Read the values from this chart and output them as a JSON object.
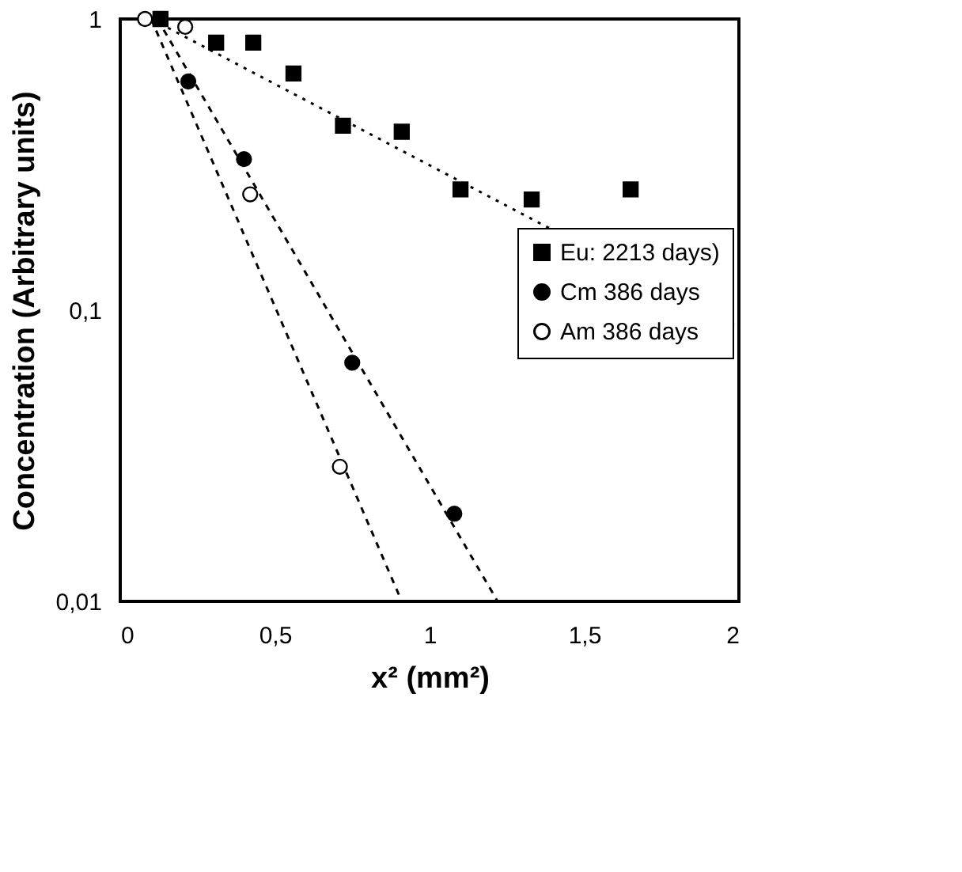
{
  "chart_data": {
    "type": "scatter",
    "xlabel": "x² (mm²)",
    "ylabel": "Concentration (Arbitrary units)",
    "log": "y",
    "xlim": [
      0,
      2
    ],
    "ylim": [
      0.01,
      1
    ],
    "xticks": [
      0,
      {
        "value": 0.5,
        "label": "0,5"
      },
      1,
      {
        "value": 1.5,
        "label": "1,5"
      },
      2
    ],
    "yticks": [
      {
        "value": 0.01,
        "label": "0,01"
      },
      {
        "value": 0.1,
        "label": "0,1"
      },
      1
    ],
    "grid": false,
    "legend": "right",
    "series": [
      {
        "name": "Eu: 2213 days)",
        "marker": "square",
        "color": "#000000",
        "x": [
          0.13,
          0.31,
          0.43,
          0.56,
          0.72,
          0.91,
          1.1,
          1.33,
          1.65
        ],
        "values": [
          1.0,
          0.83,
          0.83,
          0.65,
          0.43,
          0.41,
          0.26,
          0.24,
          0.26
        ]
      },
      {
        "name": "Cm 386 days",
        "marker": "circle",
        "color": "#000000",
        "x": [
          0.22,
          0.4,
          0.75,
          1.08
        ],
        "values": [
          0.61,
          0.33,
          0.066,
          0.02
        ]
      },
      {
        "name": "Am 386 days",
        "marker": "circle",
        "color": "#ffffff",
        "x": [
          0.08,
          0.21,
          0.42,
          0.71
        ],
        "values": [
          1.0,
          0.94,
          0.25,
          0.029
        ]
      },
      {
        "type": "line",
        "line_style": "dotted",
        "color": "#000000",
        "x": [
          0.1,
          2
        ],
        "values": [
          1.0,
          0.087
        ]
      },
      {
        "type": "line",
        "line_style": "dashed",
        "color": "#000000",
        "x": [
          0.12,
          1.22
        ],
        "values": [
          1.0,
          0.01
        ]
      },
      {
        "type": "line",
        "line_style": "dashed",
        "color": "#000000",
        "x": [
          0.1,
          0.91
        ],
        "values": [
          1.0,
          0.01
        ]
      }
    ]
  }
}
